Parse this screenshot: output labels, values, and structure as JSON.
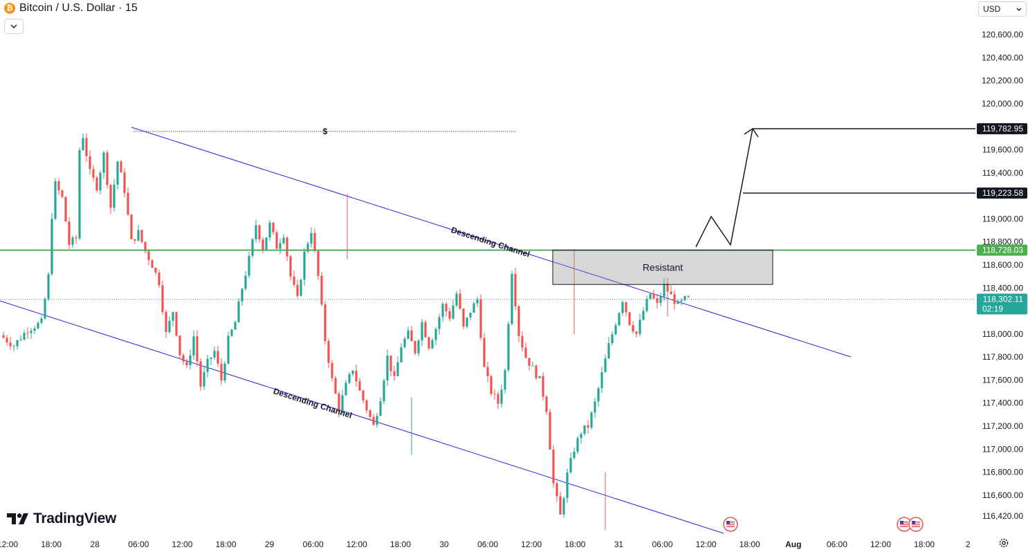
{
  "header": {
    "title": "Bitcoin / U.S. Dollar · 15",
    "coin_symbol": "₿",
    "collapse_icon": "chevron-down-icon"
  },
  "currency": {
    "label": "USD",
    "icon": "chevron-down-icon"
  },
  "branding": {
    "name": "TradingView"
  },
  "settings_icon": "gear-icon",
  "chart_data": {
    "type": "candlestick",
    "symbol": "Bitcoin / U.S. Dollar",
    "interval": "15",
    "y_axis": {
      "ticks": [
        "120,600.00",
        "120,400.00",
        "120,200.00",
        "120,000.00",
        "119,600.00",
        "119,400.00",
        "119,000.00",
        "118,800.00",
        "118,600.00",
        "118,400.00",
        "118,000.00",
        "117,800.00",
        "117,600.00",
        "117,400.00",
        "117,200.00",
        "117,000.00",
        "116,800.00",
        "116,600.00",
        "116,420.00"
      ],
      "range": [
        116300,
        120800
      ]
    },
    "x_axis": {
      "ticks": [
        "12:00",
        "18:00",
        "28",
        "06:00",
        "12:00",
        "18:00",
        "29",
        "06:00",
        "12:00",
        "18:00",
        "30",
        "06:00",
        "12:00",
        "18:00",
        "31",
        "06:00",
        "12:00",
        "18:00",
        "Aug",
        "06:00",
        "12:00",
        "18:00",
        "2"
      ],
      "bold": [
        "Aug"
      ]
    },
    "price_labels": [
      {
        "value": "119,782.95",
        "style": "black"
      },
      {
        "value": "119,223.58",
        "style": "black"
      },
      {
        "value": "118,728.03",
        "style": "green"
      },
      {
        "value": "118,302.11",
        "countdown": "02:19",
        "style": "teal"
      }
    ],
    "horizontal_lines": [
      {
        "price": 118728.03,
        "color": "#4caf50",
        "label": "118,728.03"
      },
      {
        "price": 118302.11,
        "style": "dotted",
        "label": "current price"
      }
    ],
    "annotations": [
      {
        "type": "label",
        "text": "$"
      },
      {
        "type": "label",
        "text": "Descending Channel"
      },
      {
        "type": "label",
        "text": "Descending Channel"
      },
      {
        "type": "rectangle",
        "text": "Resistant",
        "price_top": 118728,
        "price_bottom": 118430
      }
    ],
    "channel_color": "#2b1fe0",
    "colors": {
      "up": "#26a69a",
      "down": "#ef5350",
      "support": "#4caf50"
    },
    "price_path": [
      [
        0,
        117990
      ],
      [
        4,
        117900
      ],
      [
        8,
        118040
      ],
      [
        12,
        118100
      ],
      [
        14,
        118500
      ],
      [
        15,
        119030
      ],
      [
        16,
        119300
      ],
      [
        18,
        119180
      ],
      [
        20,
        118780
      ],
      [
        22,
        118830
      ],
      [
        23,
        119600
      ],
      [
        24,
        119720
      ],
      [
        26,
        119400
      ],
      [
        28,
        119280
      ],
      [
        30,
        119560
      ],
      [
        32,
        119100
      ],
      [
        34,
        119500
      ],
      [
        36,
        119250
      ],
      [
        38,
        118800
      ],
      [
        40,
        118880
      ],
      [
        42,
        118720
      ],
      [
        44,
        118600
      ],
      [
        46,
        118450
      ],
      [
        48,
        118000
      ],
      [
        50,
        118200
      ],
      [
        52,
        117830
      ],
      [
        54,
        117700
      ],
      [
        56,
        117980
      ],
      [
        58,
        117550
      ],
      [
        60,
        117750
      ],
      [
        62,
        117850
      ],
      [
        64,
        117600
      ],
      [
        66,
        117950
      ],
      [
        68,
        118100
      ],
      [
        70,
        118400
      ],
      [
        72,
        118650
      ],
      [
        74,
        118950
      ],
      [
        76,
        118750
      ],
      [
        78,
        118950
      ],
      [
        80,
        118760
      ],
      [
        82,
        118870
      ],
      [
        84,
        118500
      ],
      [
        86,
        118300
      ],
      [
        88,
        118700
      ],
      [
        90,
        118900
      ],
      [
        92,
        118500
      ],
      [
        94,
        117950
      ],
      [
        96,
        117600
      ],
      [
        98,
        117350
      ],
      [
        100,
        117550
      ],
      [
        102,
        117700
      ],
      [
        104,
        117500
      ],
      [
        106,
        117350
      ],
      [
        108,
        117200
      ],
      [
        110,
        117450
      ],
      [
        112,
        117800
      ],
      [
        114,
        117600
      ],
      [
        116,
        117900
      ],
      [
        118,
        118000
      ],
      [
        120,
        117850
      ],
      [
        122,
        118100
      ],
      [
        124,
        117900
      ],
      [
        126,
        118050
      ],
      [
        128,
        118250
      ],
      [
        130,
        118150
      ],
      [
        132,
        118350
      ],
      [
        134,
        118050
      ],
      [
        136,
        118200
      ],
      [
        138,
        118300
      ],
      [
        140,
        117700
      ],
      [
        142,
        117500
      ],
      [
        144,
        117400
      ],
      [
        146,
        117680
      ],
      [
        148,
        118550
      ],
      [
        150,
        118000
      ],
      [
        152,
        117800
      ],
      [
        154,
        117700
      ],
      [
        156,
        117600
      ],
      [
        158,
        117350
      ],
      [
        160,
        116700
      ],
      [
        162,
        116420
      ],
      [
        164,
        116780
      ],
      [
        166,
        117000
      ],
      [
        168,
        117150
      ],
      [
        170,
        117200
      ],
      [
        172,
        117400
      ],
      [
        174,
        117650
      ],
      [
        176,
        117900
      ],
      [
        178,
        118100
      ],
      [
        180,
        118300
      ],
      [
        182,
        118100
      ],
      [
        184,
        118000
      ],
      [
        186,
        118200
      ],
      [
        188,
        118350
      ],
      [
        190,
        118250
      ],
      [
        192,
        118420
      ],
      [
        194,
        118330
      ],
      [
        196,
        118250
      ],
      [
        198,
        118300
      ]
    ]
  }
}
